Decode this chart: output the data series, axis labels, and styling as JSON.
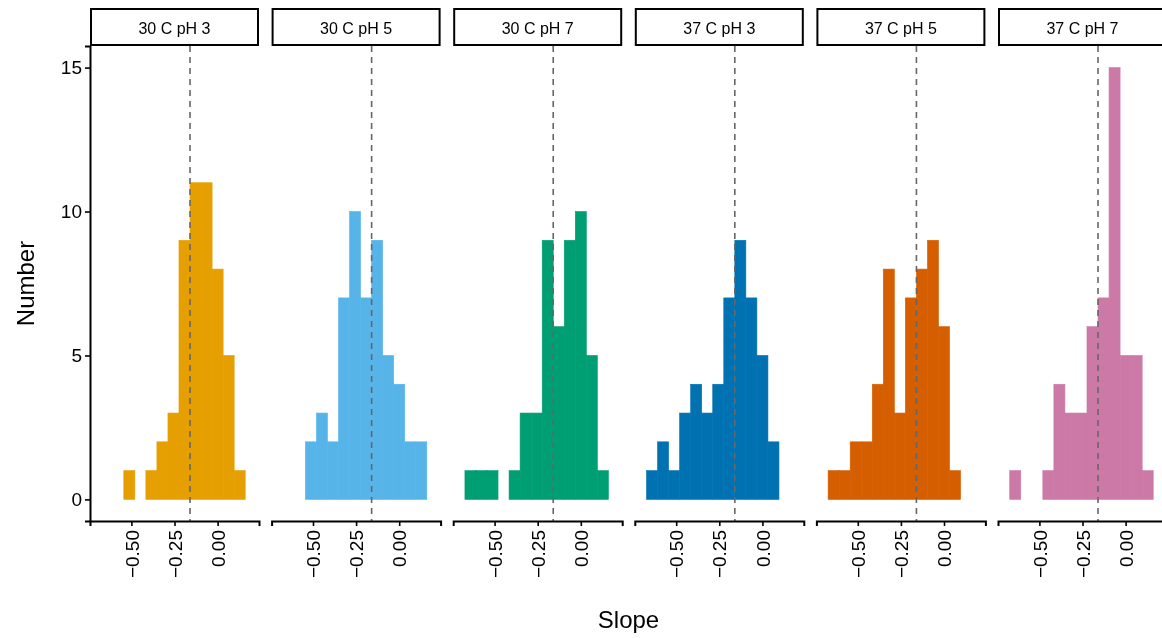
{
  "chart_data": [
    {
      "type": "histogram",
      "title": "30 C pH 3",
      "ylabel": "Number",
      "bins": [
        -0.672,
        -0.608,
        -0.544,
        -0.48,
        -0.416,
        -0.352,
        -0.288,
        -0.224,
        -0.16,
        -0.096,
        -0.032,
        0.032,
        0.096,
        0.16
      ],
      "values": [
        0,
        0,
        1,
        0,
        1,
        2,
        3,
        9,
        11,
        11,
        8,
        5,
        1
      ],
      "color": "#e69f00",
      "xlim": [
        -0.74,
        0.24
      ],
      "xticks": [
        {
          "value": -0.5,
          "label": "−0.50"
        },
        {
          "value": -0.25,
          "label": "−0.25"
        },
        {
          "value": 0,
          "label": "0.00"
        }
      ],
      "ylim": [
        -0.75,
        15.75
      ],
      "yticks": [
        0,
        5,
        10,
        15
      ],
      "ref_lines": [
        {
          "axis": "x",
          "value": -0.16,
          "color": "#666666",
          "line_style": "dashed"
        }
      ],
      "grid": false
    },
    {
      "type": "histogram",
      "title": "30 C pH 5",
      "bins": [
        -0.672,
        -0.608,
        -0.544,
        -0.48,
        -0.416,
        -0.352,
        -0.288,
        -0.224,
        -0.16,
        -0.096,
        -0.032,
        0.032,
        0.096,
        0.16
      ],
      "values": [
        0,
        0,
        2,
        3,
        2,
        7,
        10,
        7,
        9,
        5,
        4,
        2,
        2
      ],
      "color": "#56b4e9",
      "xlim": [
        -0.74,
        0.24
      ],
      "xticks": [
        {
          "value": -0.5,
          "label": "−0.50"
        },
        {
          "value": -0.25,
          "label": "−0.25"
        },
        {
          "value": 0,
          "label": "0.00"
        }
      ],
      "ylim": [
        -0.75,
        15.75
      ],
      "tick_labels": "x",
      "ref_lines": [
        {
          "axis": "x",
          "value": -0.16,
          "color": "#666666",
          "line_style": "dashed"
        }
      ],
      "grid": false
    },
    {
      "type": "histogram",
      "title": "30 C pH 7",
      "xlabel": "Slope",
      "bins": [
        -0.672,
        -0.608,
        -0.544,
        -0.48,
        -0.416,
        -0.352,
        -0.288,
        -0.224,
        -0.16,
        -0.096,
        -0.032,
        0.032,
        0.096,
        0.16
      ],
      "values": [
        1,
        1,
        1,
        0,
        1,
        3,
        3,
        9,
        6,
        9,
        10,
        5,
        1
      ],
      "color": "#009e73",
      "xlim": [
        -0.74,
        0.24
      ],
      "xticks": [
        {
          "value": -0.5,
          "label": "−0.50"
        },
        {
          "value": -0.25,
          "label": "−0.25"
        },
        {
          "value": 0,
          "label": "0.00"
        }
      ],
      "ylim": [
        -0.75,
        15.75
      ],
      "tick_labels": "x",
      "ref_lines": [
        {
          "axis": "x",
          "value": -0.16,
          "color": "#666666",
          "line_style": "dashed"
        }
      ],
      "grid": false
    },
    {
      "type": "histogram",
      "title": "37 C pH 3",
      "bins": [
        -0.672,
        -0.608,
        -0.544,
        -0.48,
        -0.416,
        -0.352,
        -0.288,
        -0.224,
        -0.16,
        -0.096,
        -0.032,
        0.032,
        0.096,
        0.16
      ],
      "values": [
        1,
        2,
        1,
        3,
        4,
        3,
        4,
        7,
        9,
        7,
        5,
        2,
        0
      ],
      "color": "#0072b2",
      "xlim": [
        -0.74,
        0.24
      ],
      "xticks": [
        {
          "value": -0.5,
          "label": "−0.50"
        },
        {
          "value": -0.25,
          "label": "−0.25"
        },
        {
          "value": 0,
          "label": "0.00"
        }
      ],
      "ylim": [
        -0.75,
        15.75
      ],
      "tick_labels": "x",
      "ref_lines": [
        {
          "axis": "x",
          "value": -0.16,
          "color": "#666666",
          "line_style": "dashed"
        }
      ],
      "grid": false
    },
    {
      "type": "histogram",
      "title": "37 C pH 5",
      "bins": [
        -0.672,
        -0.608,
        -0.544,
        -0.48,
        -0.416,
        -0.352,
        -0.288,
        -0.224,
        -0.16,
        -0.096,
        -0.032,
        0.032,
        0.096,
        0.16
      ],
      "values": [
        1,
        1,
        2,
        2,
        4,
        8,
        3,
        7,
        8,
        9,
        6,
        1,
        0
      ],
      "color": "#d55e00",
      "xlim": [
        -0.74,
        0.24
      ],
      "xticks": [
        {
          "value": -0.5,
          "label": "−0.50"
        },
        {
          "value": -0.25,
          "label": "−0.25"
        },
        {
          "value": 0,
          "label": "0.00"
        }
      ],
      "ylim": [
        -0.75,
        15.75
      ],
      "tick_labels": "x",
      "ref_lines": [
        {
          "axis": "x",
          "value": -0.16,
          "color": "#666666",
          "line_style": "dashed"
        }
      ],
      "grid": false
    },
    {
      "type": "histogram",
      "title": "37 C pH 7",
      "bins": [
        -0.672,
        -0.608,
        -0.544,
        -0.48,
        -0.416,
        -0.352,
        -0.288,
        -0.224,
        -0.16,
        -0.096,
        -0.032,
        0.032,
        0.096,
        0.16
      ],
      "values": [
        1,
        0,
        0,
        1,
        4,
        3,
        3,
        6,
        7,
        15,
        5,
        5,
        1
      ],
      "color": "#cc79a7",
      "xlim": [
        -0.74,
        0.24
      ],
      "xticks": [
        {
          "value": -0.5,
          "label": "−0.50"
        },
        {
          "value": -0.25,
          "label": "−0.25"
        },
        {
          "value": 0,
          "label": "0.00"
        }
      ],
      "ylim": [
        -0.75,
        15.75
      ],
      "tick_labels": "x",
      "ref_lines": [
        {
          "axis": "x",
          "value": -0.16,
          "color": "#666666",
          "line_style": "dashed"
        }
      ],
      "grid": false
    }
  ]
}
